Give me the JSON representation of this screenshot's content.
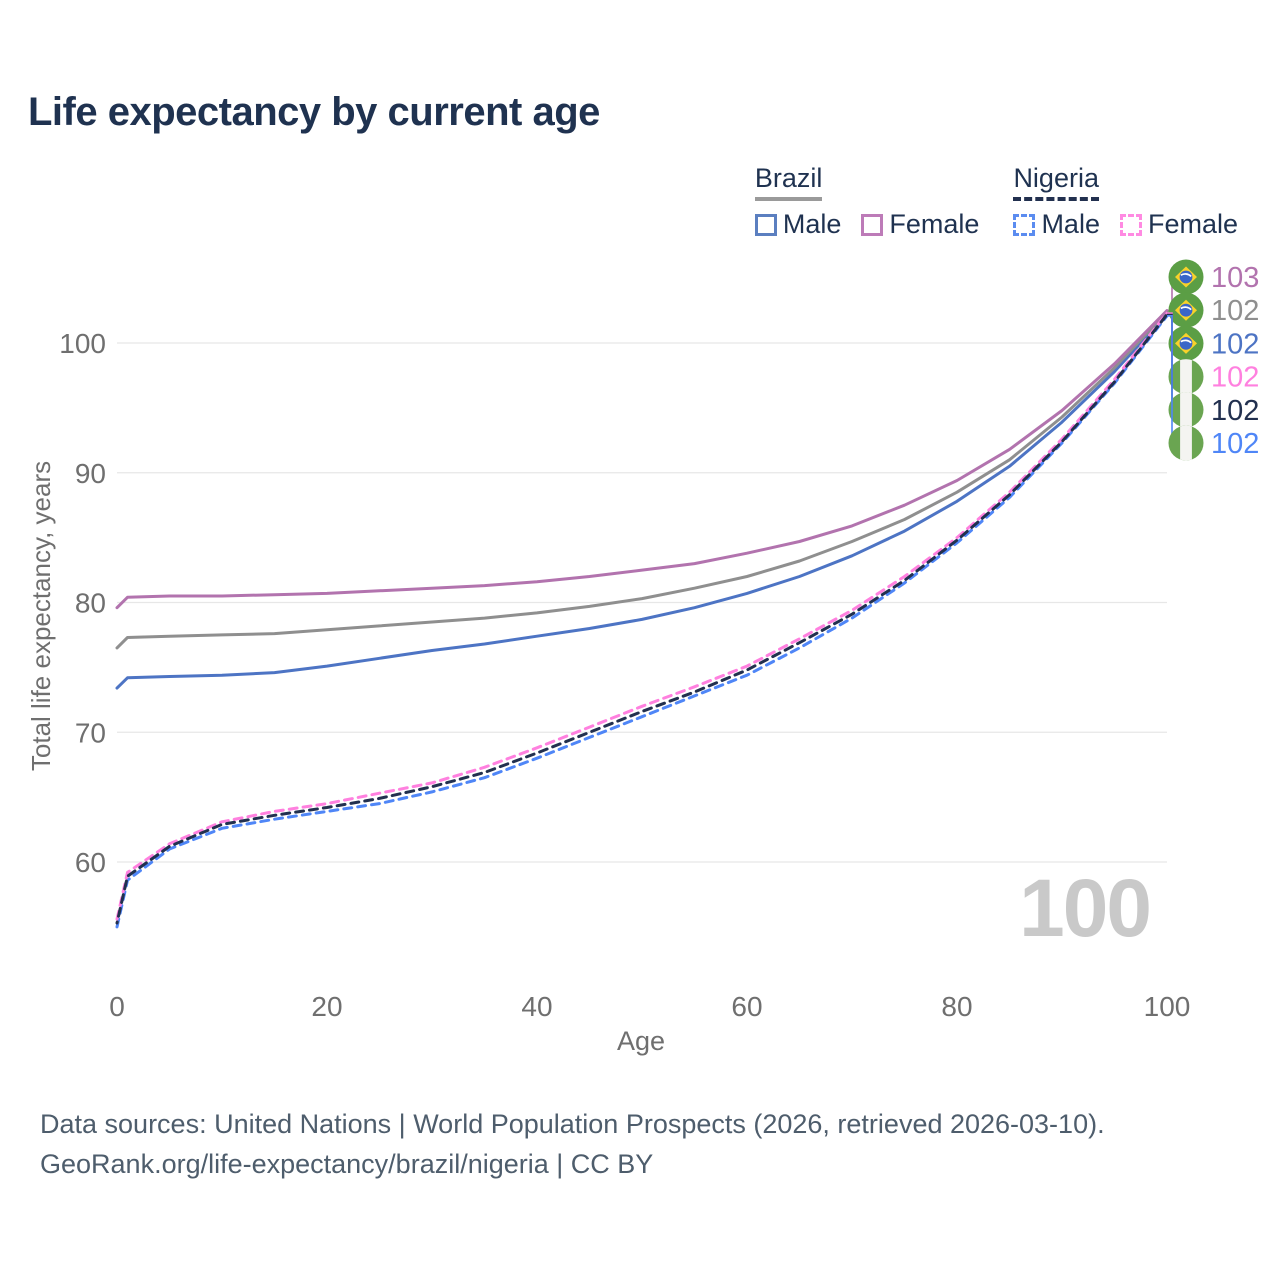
{
  "title": "Life expectancy by current age",
  "legend": {
    "groups": [
      {
        "country": "Brazil",
        "line_style": "solid",
        "items": [
          {
            "label": "Male",
            "color": "#4d74c4"
          },
          {
            "label": "Female",
            "color": "#b273ae"
          }
        ]
      },
      {
        "country": "Nigeria",
        "line_style": "dashed",
        "items": [
          {
            "label": "Male",
            "color": "#4f86f7"
          },
          {
            "label": "Female",
            "color": "#ff80df"
          }
        ]
      }
    ]
  },
  "age_indicator": "100",
  "footer": {
    "line1": "Data sources: United Nations | World Population Prospects (2026, retrieved 2026-03-10).",
    "line2": "GeoRank.org/life-expectancy/brazil/nigeria | CC BY"
  },
  "colors": {
    "title": "#1f3250",
    "axis_text": "#6f6f6f",
    "gridline": "#e7e7e7",
    "watermark": "#c9c9c9",
    "footer_text": "#4e5d6c",
    "brazil_underline": "#9a9a9a",
    "nigeria_underline": "#22304f"
  },
  "chart_data": {
    "type": "line",
    "title": "Life expectancy by current age",
    "xlabel": "Age",
    "ylabel": "Total life expectancy, years",
    "xlim": [
      0,
      100
    ],
    "ylim": [
      55,
      104
    ],
    "x_ticks": [
      0,
      20,
      40,
      60,
      80,
      100
    ],
    "y_ticks": [
      60,
      70,
      80,
      90,
      100
    ],
    "grid": true,
    "legend_position": "top-right",
    "x": [
      0,
      1,
      5,
      10,
      15,
      20,
      25,
      30,
      35,
      40,
      45,
      50,
      55,
      60,
      65,
      70,
      75,
      80,
      85,
      90,
      95,
      100
    ],
    "series": [
      {
        "name": "Brazil Female",
        "country": "Brazil",
        "sex": "Female",
        "flag": "brazil",
        "color": "#b273ae",
        "dash": "solid",
        "end_label": "103",
        "values": [
          79.6,
          80.4,
          80.5,
          80.5,
          80.6,
          80.7,
          80.9,
          81.1,
          81.3,
          81.6,
          82.0,
          82.5,
          83.0,
          83.8,
          84.7,
          85.9,
          87.5,
          89.4,
          91.8,
          94.8,
          98.4,
          102.5
        ]
      },
      {
        "name": "Brazil Both sexes",
        "country": "Brazil",
        "sex": "Both",
        "flag": "brazil",
        "color": "#8f8f8f",
        "dash": "solid",
        "end_label": "102",
        "values": [
          76.5,
          77.3,
          77.4,
          77.5,
          77.6,
          77.9,
          78.2,
          78.5,
          78.8,
          79.2,
          79.7,
          80.3,
          81.1,
          82.0,
          83.2,
          84.7,
          86.4,
          88.5,
          91.0,
          94.3,
          98.1,
          102.4
        ]
      },
      {
        "name": "Brazil Male",
        "country": "Brazil",
        "sex": "Male",
        "flag": "brazil",
        "color": "#4d74c4",
        "dash": "solid",
        "end_label": "102",
        "values": [
          73.4,
          74.2,
          74.3,
          74.4,
          74.6,
          75.1,
          75.7,
          76.3,
          76.8,
          77.4,
          78.0,
          78.7,
          79.6,
          80.7,
          82.0,
          83.6,
          85.5,
          87.8,
          90.5,
          93.9,
          97.8,
          102.2
        ]
      },
      {
        "name": "Nigeria Female",
        "country": "Nigeria",
        "sex": "Female",
        "flag": "nigeria",
        "color": "#ff80df",
        "dash": "dashed",
        "end_label": "102",
        "values": [
          55.6,
          59.2,
          61.4,
          63.1,
          63.9,
          64.5,
          65.3,
          66.1,
          67.3,
          68.8,
          70.4,
          72.0,
          73.5,
          75.1,
          77.2,
          79.4,
          82.0,
          85.0,
          88.5,
          92.6,
          97.2,
          102.3
        ]
      },
      {
        "name": "Nigeria Both sexes",
        "country": "Nigeria",
        "sex": "Both",
        "flag": "nigeria",
        "color": "#22304f",
        "dash": "dashed",
        "end_label": "102",
        "values": [
          55.3,
          58.9,
          61.2,
          62.9,
          63.6,
          64.2,
          64.9,
          65.8,
          66.9,
          68.4,
          70.0,
          71.6,
          73.1,
          74.8,
          76.9,
          79.1,
          81.7,
          84.8,
          88.3,
          92.4,
          97.0,
          102.2
        ]
      },
      {
        "name": "Nigeria Male",
        "country": "Nigeria",
        "sex": "Male",
        "flag": "nigeria",
        "color": "#4f86f7",
        "dash": "dashed",
        "end_label": "102",
        "values": [
          55.0,
          58.6,
          61.0,
          62.6,
          63.3,
          63.9,
          64.5,
          65.4,
          66.5,
          68.0,
          69.6,
          71.2,
          72.8,
          74.4,
          76.5,
          78.8,
          81.5,
          84.6,
          88.1,
          92.3,
          96.9,
          102.1
        ]
      }
    ]
  }
}
